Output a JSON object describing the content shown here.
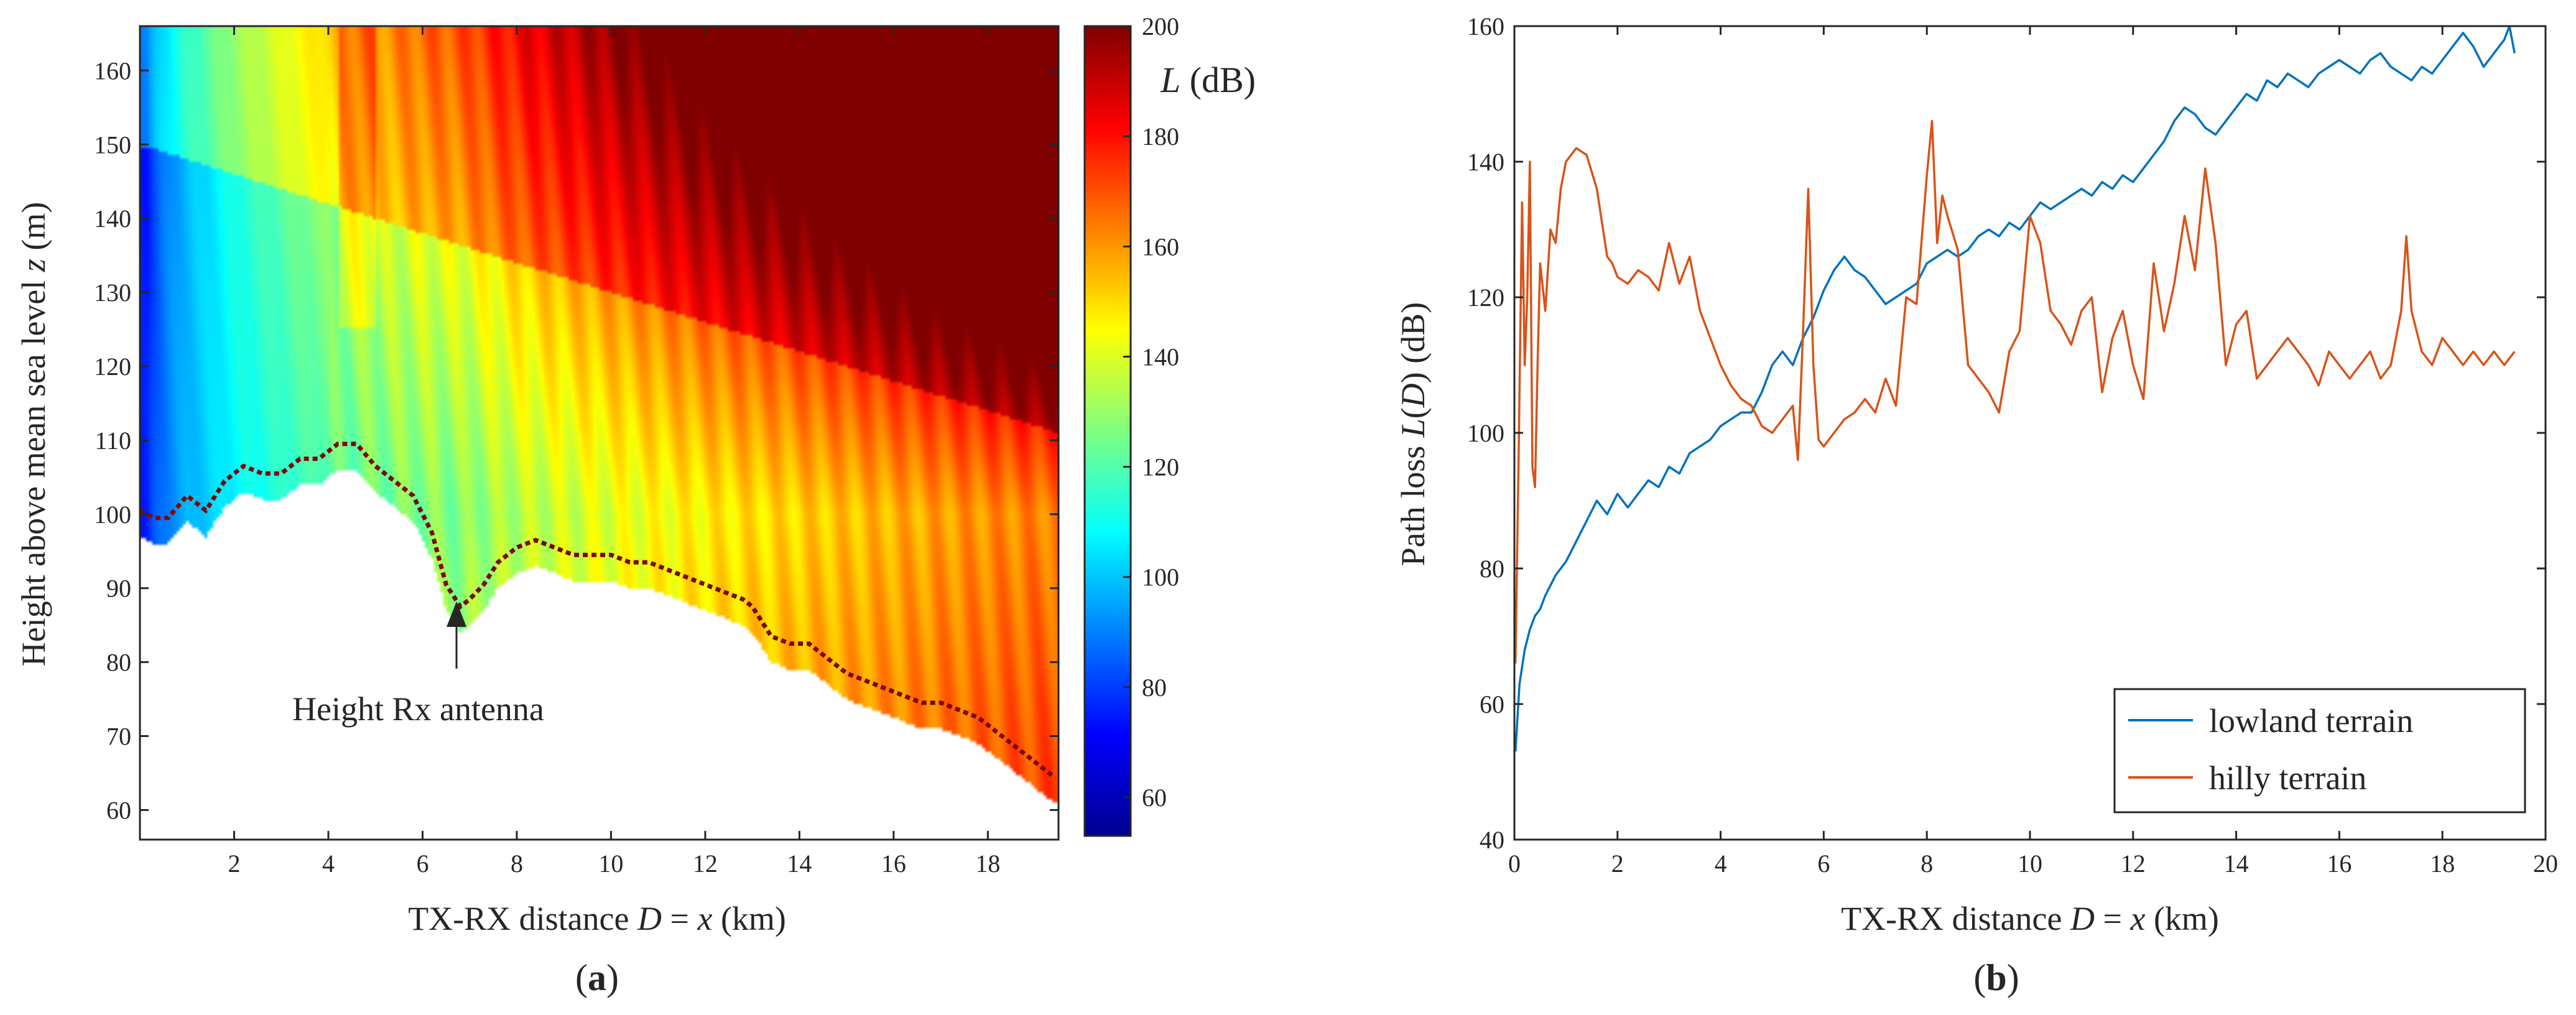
{
  "chart_data": [
    {
      "panel": "a",
      "caption_letter": "a",
      "type": "heatmap",
      "xlabel": {
        "pre": "TX-RX distance ",
        "var": "D",
        "eq": " = ",
        "var2": "x",
        "post": " (km)"
      },
      "ylabel": {
        "pre": "Height above mean sea level ",
        "var": "z",
        "post": " (m)"
      },
      "xlim": [
        0,
        19.5
      ],
      "ylim": [
        56,
        166
      ],
      "xticks": [
        2,
        4,
        6,
        8,
        10,
        12,
        14,
        16,
        18
      ],
      "yticks": [
        60,
        70,
        80,
        90,
        100,
        110,
        120,
        130,
        140,
        150,
        160
      ],
      "colorbar": {
        "label_var": "L",
        "label_unit": " (dB)",
        "range": [
          53,
          200
        ],
        "ticks": [
          60,
          80,
          100,
          120,
          140,
          160,
          180,
          200
        ]
      },
      "annotation": {
        "text": "Height Rx antenna",
        "x": 6.8,
        "y": 87
      },
      "terrain_profile": {
        "x": [
          0,
          0.3,
          0.6,
          1.0,
          1.4,
          1.8,
          2.2,
          2.6,
          3.0,
          3.4,
          3.8,
          4.2,
          4.6,
          5.0,
          5.4,
          5.8,
          6.2,
          6.5,
          6.8,
          7.0,
          7.3,
          7.6,
          8.0,
          8.4,
          8.8,
          9.2,
          9.6,
          10.0,
          10.4,
          10.8,
          11.2,
          11.6,
          12.0,
          12.4,
          12.8,
          13.0,
          13.4,
          13.8,
          14.2,
          14.6,
          15.0,
          15.4,
          15.8,
          16.2,
          16.6,
          17.0,
          17.4,
          17.8,
          18.2,
          18.6,
          19.0,
          19.4
        ],
        "z": [
          100,
          99,
          99,
          102,
          100,
          104,
          106,
          105,
          105,
          107,
          107,
          109,
          109,
          106,
          104,
          102,
          97,
          90,
          87,
          88,
          90,
          93,
          95,
          96,
          95,
          94,
          94,
          94,
          93,
          93,
          92,
          91,
          90,
          89,
          88,
          87,
          83,
          82,
          82,
          80,
          78,
          77,
          76,
          75,
          74,
          74,
          73,
          72,
          70,
          68,
          66,
          64
        ]
      },
      "colormap": "jet"
    },
    {
      "panel": "b",
      "caption_letter": "b",
      "type": "line",
      "xlabel": {
        "pre": "TX-RX distance ",
        "var": "D",
        "eq": " = ",
        "var2": "x",
        "post": " (km)"
      },
      "ylabel": {
        "pre": "Path loss ",
        "var": "L",
        "mid": "(",
        "var2": "D",
        "post": ") (dB)"
      },
      "xlim": [
        0,
        20
      ],
      "ylim": [
        40,
        160
      ],
      "xticks": [
        0,
        2,
        4,
        6,
        8,
        10,
        12,
        14,
        16,
        18,
        20
      ],
      "yticks": [
        40,
        60,
        80,
        100,
        120,
        140,
        160
      ],
      "legend_position": "bottom-right",
      "series": [
        {
          "name": "lowland terrain",
          "color": "#0072bd",
          "x": [
            0.02,
            0.1,
            0.2,
            0.3,
            0.4,
            0.5,
            0.6,
            0.8,
            1.0,
            1.2,
            1.4,
            1.6,
            1.8,
            2.0,
            2.2,
            2.4,
            2.6,
            2.8,
            3.0,
            3.2,
            3.4,
            3.6,
            3.8,
            4.0,
            4.2,
            4.4,
            4.6,
            4.8,
            5.0,
            5.2,
            5.4,
            5.6,
            5.8,
            6.0,
            6.2,
            6.4,
            6.6,
            6.8,
            7.0,
            7.2,
            7.4,
            7.6,
            7.8,
            8.0,
            8.2,
            8.4,
            8.6,
            8.8,
            9.0,
            9.2,
            9.4,
            9.6,
            9.8,
            10.0,
            10.2,
            10.4,
            10.6,
            10.8,
            11.0,
            11.2,
            11.4,
            11.6,
            11.8,
            12.0,
            12.2,
            12.4,
            12.6,
            12.8,
            13.0,
            13.2,
            13.4,
            13.6,
            13.8,
            14.0,
            14.2,
            14.4,
            14.6,
            14.8,
            15.0,
            15.2,
            15.4,
            15.6,
            15.8,
            16.0,
            16.2,
            16.4,
            16.6,
            16.8,
            17.0,
            17.2,
            17.4,
            17.6,
            17.8,
            18.0,
            18.2,
            18.4,
            18.6,
            18.8,
            19.0,
            19.2,
            19.3,
            19.4
          ],
          "y": [
            53,
            63,
            68,
            71,
            73,
            74,
            76,
            79,
            81,
            84,
            87,
            90,
            88,
            91,
            89,
            91,
            93,
            92,
            95,
            94,
            97,
            98,
            99,
            101,
            102,
            103,
            103,
            106,
            110,
            112,
            110,
            114,
            117,
            121,
            124,
            126,
            124,
            123,
            121,
            119,
            120,
            121,
            122,
            125,
            126,
            127,
            126,
            127,
            129,
            130,
            129,
            131,
            130,
            132,
            134,
            133,
            134,
            135,
            136,
            135,
            137,
            136,
            138,
            137,
            139,
            141,
            143,
            146,
            148,
            147,
            145,
            144,
            146,
            148,
            150,
            149,
            152,
            151,
            153,
            152,
            151,
            153,
            154,
            155,
            154,
            153,
            155,
            156,
            154,
            153,
            152,
            154,
            153,
            155,
            157,
            159,
            157,
            154,
            156,
            158,
            160,
            156
          ]
        },
        {
          "name": "hilly terrain",
          "color": "#d95319",
          "x": [
            0.02,
            0.08,
            0.15,
            0.2,
            0.25,
            0.3,
            0.35,
            0.4,
            0.45,
            0.5,
            0.6,
            0.7,
            0.8,
            0.9,
            1.0,
            1.2,
            1.4,
            1.6,
            1.8,
            1.9,
            2.0,
            2.2,
            2.4,
            2.6,
            2.8,
            3.0,
            3.2,
            3.4,
            3.6,
            3.8,
            4.0,
            4.2,
            4.4,
            4.6,
            4.8,
            5.0,
            5.2,
            5.4,
            5.5,
            5.6,
            5.7,
            5.8,
            5.9,
            6.0,
            6.2,
            6.4,
            6.6,
            6.8,
            7.0,
            7.2,
            7.4,
            7.6,
            7.8,
            8.0,
            8.1,
            8.2,
            8.3,
            8.4,
            8.6,
            8.8,
            9.0,
            9.2,
            9.4,
            9.6,
            9.8,
            10.0,
            10.2,
            10.4,
            10.6,
            10.8,
            11.0,
            11.2,
            11.4,
            11.6,
            11.8,
            12.0,
            12.2,
            12.4,
            12.6,
            12.8,
            13.0,
            13.2,
            13.4,
            13.6,
            13.8,
            14.0,
            14.2,
            14.4,
            14.6,
            14.8,
            15.0,
            15.2,
            15.4,
            15.6,
            15.8,
            16.0,
            16.2,
            16.4,
            16.6,
            16.8,
            17.0,
            17.2,
            17.3,
            17.4,
            17.6,
            17.8,
            18.0,
            18.2,
            18.4,
            18.6,
            18.8,
            19.0,
            19.2,
            19.4
          ],
          "y": [
            66,
            95,
            134,
            110,
            120,
            140,
            95,
            92,
            110,
            125,
            118,
            130,
            128,
            136,
            140,
            142,
            141,
            136,
            126,
            125,
            123,
            122,
            124,
            123,
            121,
            128,
            122,
            126,
            118,
            114,
            110,
            107,
            105,
            104,
            101,
            100,
            102,
            104,
            96,
            115,
            136,
            110,
            99,
            98,
            100,
            102,
            103,
            105,
            103,
            108,
            104,
            120,
            119,
            138,
            146,
            128,
            135,
            132,
            127,
            110,
            108,
            106,
            103,
            112,
            115,
            132,
            128,
            118,
            116,
            113,
            118,
            120,
            106,
            114,
            118,
            110,
            105,
            125,
            115,
            122,
            132,
            124,
            139,
            128,
            110,
            116,
            118,
            108,
            110,
            112,
            114,
            112,
            110,
            107,
            112,
            110,
            108,
            110,
            112,
            108,
            110,
            118,
            129,
            118,
            112,
            110,
            114,
            112,
            110,
            112,
            110,
            112,
            110,
            112
          ]
        }
      ]
    }
  ]
}
